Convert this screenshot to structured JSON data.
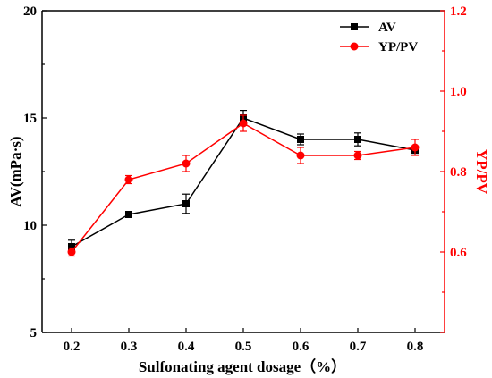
{
  "chart_data": {
    "type": "line",
    "x": [
      "0.2",
      "0.3",
      "0.4",
      "0.5",
      "0.6",
      "0.7",
      "0.8"
    ],
    "xlabel": "Sulfonating agent dosage（%）",
    "ylabel_left": "AV(mPa·s)",
    "ylabel_right": "YP/PV",
    "ylim_left": [
      5,
      20
    ],
    "ylim_right": [
      0.4,
      1.2
    ],
    "yticks_left": [
      "5",
      "10",
      "15",
      "20"
    ],
    "yticks_right": [
      "0.6",
      "0.8",
      "1.0",
      "1.2"
    ],
    "grid": false,
    "legend_position": "top-right",
    "series": [
      {
        "name": "AV",
        "axis": "left",
        "color": "#000000",
        "marker": "square",
        "values": [
          9.0,
          10.5,
          11.0,
          15.0,
          14.0,
          14.0,
          13.5
        ],
        "errors": [
          0.3,
          0.12,
          0.45,
          0.35,
          0.25,
          0.3,
          0.15
        ]
      },
      {
        "name": "YP/PV",
        "axis": "right",
        "color": "#ff0000",
        "marker": "circle",
        "values": [
          0.6,
          0.78,
          0.82,
          0.92,
          0.84,
          0.84,
          0.86
        ],
        "errors": [
          0.01,
          0.01,
          0.02,
          0.02,
          0.02,
          0.01,
          0.02
        ]
      }
    ]
  }
}
